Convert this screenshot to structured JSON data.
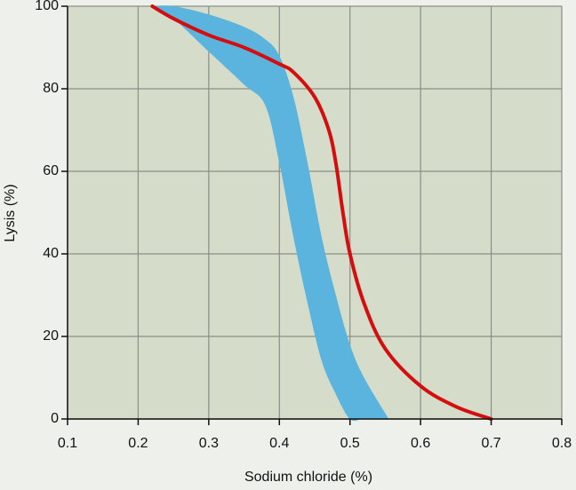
{
  "chart_data": {
    "type": "line",
    "x_label": "Sodium chloride (%)",
    "y_label": "Lysis (%)",
    "xlim": [
      0.1,
      0.8
    ],
    "ylim": [
      0,
      100
    ],
    "xticks": [
      0.1,
      0.2,
      0.3,
      0.4,
      0.5,
      0.6,
      0.7,
      0.8
    ],
    "yticks": [
      0,
      20,
      40,
      60,
      80,
      100
    ],
    "grid": true,
    "background": "#d5dcc9",
    "band": {
      "color": "#5ab4de",
      "x": [
        0.22,
        0.25,
        0.3,
        0.35,
        0.38,
        0.4,
        0.42,
        0.44,
        0.46,
        0.48,
        0.5,
        0.52,
        0.555
      ],
      "upper": [
        100,
        100,
        98,
        95,
        92,
        88,
        78,
        62,
        44,
        30,
        18,
        10,
        0
      ],
      "lower": [
        100,
        97,
        89,
        81,
        76,
        62,
        44,
        28,
        14,
        6,
        0,
        0,
        0
      ]
    },
    "series": [
      {
        "color": "#d40e0e",
        "x": [
          0.22,
          0.25,
          0.3,
          0.35,
          0.4,
          0.42,
          0.45,
          0.47,
          0.48,
          0.49,
          0.5,
          0.52,
          0.55,
          0.6,
          0.65,
          0.7
        ],
        "values": [
          100,
          97,
          93,
          90,
          86,
          84,
          78,
          70,
          62,
          50,
          40,
          28,
          17,
          8,
          3,
          0
        ]
      }
    ]
  }
}
